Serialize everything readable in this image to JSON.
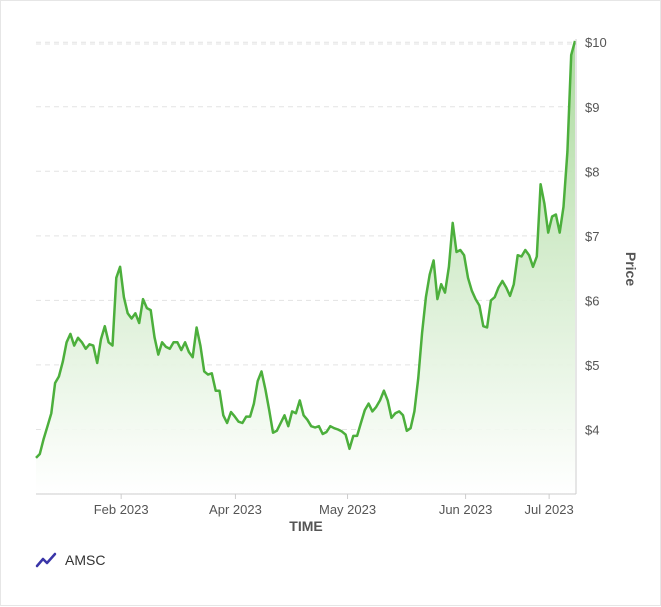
{
  "chart_data": {
    "type": "area",
    "title": "",
    "xlabel": "TIME",
    "ylabel": "Price",
    "x_tick_labels": [
      "Feb 2023",
      "Apr 2023",
      "May 2023",
      "Jun 2023",
      "Jul 2023"
    ],
    "y_tick_labels": [
      "$4",
      "$5",
      "$6",
      "$7",
      "$8",
      "$9",
      "$10"
    ],
    "y_ticks": [
      4,
      5,
      6,
      7,
      8,
      9,
      10
    ],
    "ylim": [
      3.0,
      10.05
    ],
    "grid": "horizontal dashed",
    "legend_position": "bottom-left",
    "series": [
      {
        "name": "AMSC",
        "color": "#4caf3c",
        "fill_top": "#a8d99a",
        "fill_bottom": "#ffffff",
        "values": [
          3.56,
          3.62,
          3.85,
          4.05,
          4.25,
          4.72,
          4.82,
          5.05,
          5.35,
          5.48,
          5.3,
          5.42,
          5.35,
          5.25,
          5.32,
          5.3,
          5.03,
          5.4,
          5.6,
          5.35,
          5.3,
          6.35,
          6.52,
          6.05,
          5.8,
          5.72,
          5.8,
          5.65,
          6.02,
          5.88,
          5.85,
          5.43,
          5.16,
          5.35,
          5.28,
          5.25,
          5.35,
          5.35,
          5.23,
          5.35,
          5.2,
          5.12,
          5.58,
          5.3,
          4.9,
          4.85,
          4.87,
          4.6,
          4.6,
          4.22,
          4.1,
          4.27,
          4.2,
          4.12,
          4.1,
          4.2,
          4.2,
          4.4,
          4.75,
          4.9,
          4.62,
          4.3,
          3.95,
          3.98,
          4.1,
          4.22,
          4.05,
          4.28,
          4.25,
          4.45,
          4.22,
          4.15,
          4.05,
          4.03,
          4.05,
          3.93,
          3.96,
          4.05,
          4.02,
          4.0,
          3.97,
          3.92,
          3.7,
          3.9,
          3.9,
          4.1,
          4.3,
          4.4,
          4.28,
          4.35,
          4.45,
          4.6,
          4.45,
          4.18,
          4.25,
          4.28,
          4.22,
          3.98,
          4.02,
          4.28,
          4.8,
          5.5,
          6.05,
          6.4,
          6.62,
          6.02,
          6.25,
          6.12,
          6.52,
          7.2,
          6.75,
          6.78,
          6.7,
          6.35,
          6.15,
          6.02,
          5.92,
          5.6,
          5.58,
          6.0,
          6.05,
          6.2,
          6.3,
          6.2,
          6.07,
          6.25,
          6.7,
          6.68,
          6.78,
          6.7,
          6.52,
          6.68,
          7.8,
          7.5,
          7.05,
          7.3,
          7.33,
          7.05,
          7.45,
          8.3,
          9.8,
          10.02
        ]
      }
    ]
  },
  "legend": {
    "label": "AMSC",
    "icon": "line-chart-icon",
    "icon_color": "#3a35a8"
  }
}
